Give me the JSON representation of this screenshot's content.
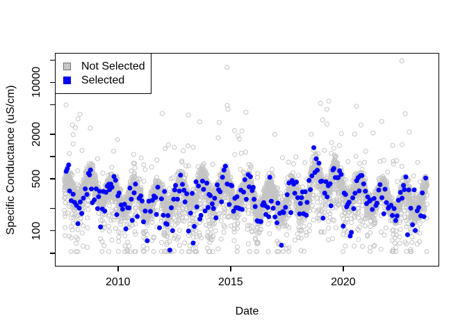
{
  "figure": {
    "background": "#ffffff"
  },
  "chart_data": {
    "type": "scatter",
    "title": "",
    "xlabel": "Date",
    "ylabel": "Specific Conductance (uS/cm)",
    "grid": false,
    "x_axis": {
      "range": [
        2007.2,
        2024.26
      ],
      "ticks": [
        2010,
        2015,
        2020
      ],
      "tick_labels": [
        "2010",
        "2015",
        "2020"
      ]
    },
    "y_axis": {
      "scale": "log10",
      "range": [
        33,
        25000
      ],
      "ticks": [
        50,
        100,
        200,
        500,
        1000,
        2000,
        5000,
        10000,
        20000
      ],
      "labeled_ticks": [
        100,
        500,
        2000,
        10000
      ],
      "tick_labels": [
        "100",
        "500",
        "2000",
        "10000"
      ]
    },
    "legend": {
      "position": "top-left",
      "items": [
        {
          "label": "Not Selected",
          "color": "#c8c8c8",
          "border": "#6e6e6e",
          "marker": "square"
        },
        {
          "label": "Selected",
          "color": "#0000ff",
          "border": "#0000c0",
          "marker": "square"
        }
      ]
    },
    "series": [
      {
        "name": "Not Selected",
        "marker": "open-circle",
        "color": "#c4c4c4",
        "marker_radius_px": 3.0,
        "approx_count": 5880,
        "cadence": "daily",
        "time_span_years": [
          2007.62,
          2023.72
        ],
        "value_band_uScm": [
          52,
          11000
        ]
      },
      {
        "name": "Selected",
        "marker": "filled-circle",
        "color": "#0000ff",
        "marker_radius_px": 3.5,
        "approx_count": 255,
        "cadence": "approximately every 3 weeks",
        "time_span_years": [
          2007.7,
          2023.68
        ],
        "value_band_uScm": [
          55,
          1750
        ]
      }
    ],
    "outliers": [
      {
        "x": 2014.84,
        "y": 16000,
        "series": "Not Selected"
      },
      {
        "x": 2022.6,
        "y": 19500,
        "series": "Not Selected"
      },
      {
        "x": 2014.85,
        "y": 4900,
        "series": "Not Selected"
      }
    ],
    "generator": {
      "seed": 1234,
      "gray_step_days": 1,
      "blue_step_days": 22,
      "base_log10": 2.5,
      "seasonal_amp": 0.17,
      "seasonal_phase": 0.5,
      "slow_amp": 0.09,
      "slow_period_years": 5.5,
      "slow_phase": 0.8,
      "noise_sd": 0.07,
      "dip_prob": 0.05,
      "dip_depth": [
        0.25,
        1.0
      ],
      "spike_prob": 0.025,
      "spike_size": [
        0.15,
        1.15
      ],
      "boost_years": [
        2018.55,
        2019.75
      ],
      "boost_amp": 0.16,
      "gray_clamp_log10": [
        1.72,
        4.02
      ],
      "blue_clamp_log10": [
        1.74,
        3.24
      ],
      "blue_noise_sd": 0.1,
      "blue_low_tail_prob": 0.3,
      "blue_low_tail_max": 0.5
    }
  }
}
